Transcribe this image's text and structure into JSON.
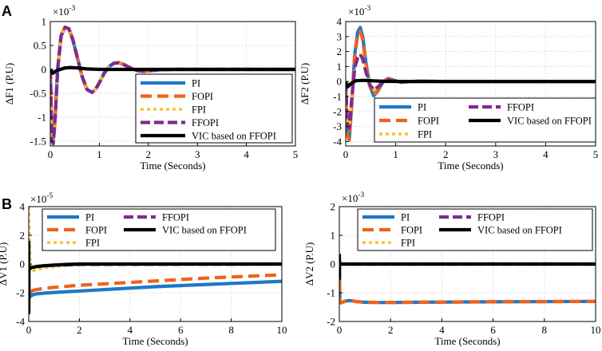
{
  "panel_labels": [
    "A",
    "B"
  ],
  "legend_labels": {
    "pi": "PI",
    "fopi": "FOPI",
    "fpi": "FPI",
    "ffopi": "FFOPI",
    "vic": "VIC based on FFOPI"
  },
  "colors": {
    "pi": "#1f77c8",
    "fopi": "#f0621e",
    "fpi": "#f6c334",
    "ffopi": "#7b2c93",
    "vic": "#000000"
  },
  "chart_data": [
    {
      "id": "f1",
      "type": "line",
      "ylabel": "ΔF1 (P.U)",
      "xlabel": "Time (Seconds)",
      "multiplier": "×10",
      "multiplier_exp": "-3",
      "xlim": [
        0,
        5
      ],
      "ylim": [
        -1.6,
        1.0
      ],
      "xticks": [
        0,
        1,
        2,
        3,
        4,
        5
      ],
      "xtick_labels": [
        "0",
        "1",
        "2",
        "3",
        "4",
        "5"
      ],
      "yticks": [
        -1.5,
        -1,
        -0.5,
        0,
        0.5,
        1
      ],
      "ytick_labels": [
        "-1.5",
        "-1",
        "-0.5",
        "0",
        "0.5",
        "1"
      ],
      "legend_position": "bottom-right",
      "series": [
        {
          "name": "PI",
          "x": [
            0,
            0.03,
            0.06,
            0.1,
            0.15,
            0.22,
            0.3,
            0.38,
            0.46,
            0.55,
            0.65,
            0.75,
            0.85,
            0.92,
            1.0,
            1.1,
            1.2,
            1.3,
            1.4,
            1.5,
            1.6,
            1.7,
            1.8,
            1.9,
            2.0,
            2.2,
            2.5,
            3.0,
            5.0
          ],
          "y": [
            0,
            -1.45,
            -1.55,
            -1.0,
            0.0,
            0.7,
            0.88,
            0.85,
            0.62,
            0.25,
            -0.15,
            -0.42,
            -0.48,
            -0.42,
            -0.28,
            -0.08,
            0.06,
            0.13,
            0.14,
            0.1,
            0.05,
            0.0,
            -0.03,
            -0.04,
            -0.03,
            -0.01,
            0.0,
            0.0,
            0.0
          ]
        },
        {
          "name": "FOPI",
          "x": [
            0,
            0.03,
            0.06,
            0.1,
            0.15,
            0.22,
            0.3,
            0.38,
            0.46,
            0.55,
            0.65,
            0.75,
            0.85,
            0.92,
            1.0,
            1.1,
            1.2,
            1.3,
            1.4,
            1.5,
            1.6,
            1.7,
            1.8,
            1.9,
            2.0,
            2.2,
            2.5,
            3.0,
            5.0
          ],
          "y": [
            0,
            -1.45,
            -1.55,
            -1.0,
            0.0,
            0.7,
            0.88,
            0.85,
            0.62,
            0.25,
            -0.15,
            -0.42,
            -0.48,
            -0.42,
            -0.28,
            -0.08,
            0.06,
            0.13,
            0.14,
            0.1,
            0.05,
            0.0,
            -0.03,
            -0.04,
            -0.03,
            -0.01,
            0.0,
            0.0,
            0.0
          ]
        },
        {
          "name": "FPI",
          "x": [
            0,
            0.03,
            0.06,
            0.1,
            0.15,
            0.22,
            0.3,
            0.38,
            0.46,
            0.55,
            0.65,
            0.75,
            0.85,
            0.92,
            1.0,
            1.1,
            1.2,
            1.3,
            1.4,
            1.5,
            1.6,
            1.7,
            1.8,
            1.9,
            2.0,
            2.2,
            2.5,
            3.0,
            5.0
          ],
          "y": [
            0,
            -1.45,
            -1.55,
            -1.0,
            0.0,
            0.7,
            0.88,
            0.85,
            0.62,
            0.25,
            -0.15,
            -0.42,
            -0.48,
            -0.42,
            -0.28,
            -0.08,
            0.06,
            0.13,
            0.14,
            0.1,
            0.05,
            0.0,
            -0.03,
            -0.04,
            -0.03,
            -0.01,
            0.0,
            0.0,
            0.0
          ]
        },
        {
          "name": "FFOPI",
          "x": [
            0,
            0.03,
            0.06,
            0.1,
            0.15,
            0.22,
            0.3,
            0.38,
            0.46,
            0.55,
            0.65,
            0.75,
            0.85,
            0.92,
            1.0,
            1.1,
            1.2,
            1.3,
            1.4,
            1.5,
            1.6,
            1.7,
            1.8,
            1.9,
            2.0,
            2.2,
            2.5,
            3.0,
            5.0
          ],
          "y": [
            0,
            -1.45,
            -1.55,
            -1.0,
            0.0,
            0.7,
            0.88,
            0.85,
            0.62,
            0.25,
            -0.15,
            -0.42,
            -0.48,
            -0.42,
            -0.28,
            -0.08,
            0.06,
            0.13,
            0.14,
            0.1,
            0.05,
            0.0,
            -0.03,
            -0.04,
            -0.03,
            -0.01,
            0.0,
            0.0,
            0.0
          ]
        },
        {
          "name": "VIC based on FFOPI",
          "x": [
            0,
            0.05,
            0.12,
            0.2,
            0.3,
            0.4,
            0.55,
            0.75,
            1.0,
            1.5,
            2.0,
            5.0
          ],
          "y": [
            0,
            -0.08,
            -0.03,
            0.0,
            0.03,
            0.04,
            0.03,
            0.01,
            0.0,
            0.0,
            0.0,
            0.0
          ]
        }
      ]
    },
    {
      "id": "f2",
      "type": "line",
      "ylabel": "ΔF2 (P.U)",
      "xlabel": "Time (Seconds)",
      "multiplier": "×10",
      "multiplier_exp": "-3",
      "xlim": [
        0,
        5
      ],
      "ylim": [
        -4.3,
        4.0
      ],
      "xticks": [
        0,
        1,
        2,
        3,
        4,
        5
      ],
      "xtick_labels": [
        "0",
        "1",
        "2",
        "3",
        "4",
        "5"
      ],
      "yticks": [
        -4,
        -3,
        -2,
        -1,
        0,
        1,
        2,
        3,
        4
      ],
      "ytick_labels": [
        "-4",
        "-3",
        "-2",
        "-1",
        "0",
        "1",
        "2",
        "3",
        "4"
      ],
      "legend_position": "bottom-right",
      "series": [
        {
          "name": "PI",
          "x": [
            0,
            0.03,
            0.07,
            0.12,
            0.18,
            0.24,
            0.29,
            0.34,
            0.4,
            0.48,
            0.56,
            0.65,
            0.75,
            0.85,
            0.95,
            1.1,
            1.3,
            1.5,
            2.0,
            5.0
          ],
          "y": [
            0,
            -3.5,
            -3.9,
            -1.5,
            1.8,
            3.3,
            3.6,
            3.0,
            1.4,
            -0.3,
            -0.95,
            -0.6,
            0.0,
            0.2,
            0.1,
            -0.05,
            0.0,
            0.03,
            0.0,
            0.0
          ]
        },
        {
          "name": "FOPI",
          "x": [
            0,
            0.03,
            0.07,
            0.12,
            0.18,
            0.24,
            0.29,
            0.34,
            0.4,
            0.48,
            0.56,
            0.65,
            0.75,
            0.85,
            0.95,
            1.1,
            1.3,
            1.5,
            2.0,
            5.0
          ],
          "y": [
            0,
            -3.5,
            -3.9,
            -1.6,
            1.7,
            3.1,
            3.35,
            2.8,
            1.3,
            -0.3,
            -0.9,
            -0.55,
            0.0,
            0.18,
            0.08,
            -0.04,
            0.0,
            0.02,
            0.0,
            0.0
          ]
        },
        {
          "name": "FPI",
          "x": [
            0,
            0.03,
            0.07,
            0.12,
            0.18,
            0.24,
            0.29,
            0.34,
            0.4,
            0.48,
            0.56,
            0.65,
            0.75,
            0.85,
            0.95,
            1.1,
            1.3,
            1.5,
            2.0,
            5.0
          ],
          "y": [
            0,
            -2.8,
            -3.1,
            -1.2,
            0.9,
            1.6,
            1.8,
            1.5,
            0.7,
            -0.2,
            -0.55,
            -0.35,
            0.0,
            0.12,
            0.05,
            -0.02,
            0.0,
            0.01,
            0.0,
            0.0
          ]
        },
        {
          "name": "FFOPI",
          "x": [
            0,
            0.03,
            0.07,
            0.12,
            0.18,
            0.24,
            0.29,
            0.34,
            0.4,
            0.48,
            0.56,
            0.65,
            0.75,
            0.85,
            0.95,
            1.1,
            1.3,
            1.5,
            2.0,
            5.0
          ],
          "y": [
            0,
            -2.8,
            -3.1,
            -1.2,
            0.9,
            1.6,
            1.8,
            1.5,
            0.7,
            -0.2,
            -0.55,
            -0.35,
            0.0,
            0.12,
            0.05,
            -0.02,
            0.0,
            0.01,
            0.0,
            0.0
          ]
        },
        {
          "name": "VIC based on FFOPI",
          "x": [
            0,
            0.04,
            0.1,
            0.2,
            0.35,
            0.5,
            0.8,
            1.2,
            5.0
          ],
          "y": [
            0,
            -0.35,
            -0.15,
            0.05,
            0.08,
            0.05,
            0.01,
            0.0,
            0.0
          ]
        }
      ]
    },
    {
      "id": "v1",
      "type": "line",
      "ylabel": "ΔV1 (P.U)",
      "xlabel": "Time (Seconds)",
      "multiplier": "×10",
      "multiplier_exp": "-5",
      "xlim": [
        0,
        10
      ],
      "ylim": [
        -4,
        4
      ],
      "xticks": [
        0,
        2,
        4,
        6,
        8,
        10
      ],
      "xtick_labels": [
        "0",
        "2",
        "4",
        "6",
        "8",
        "10"
      ],
      "yticks": [
        -4,
        -2,
        0,
        2,
        4
      ],
      "ytick_labels": [
        "-4",
        "-2",
        "0",
        "2",
        "4"
      ],
      "legend_position": "top",
      "series": [
        {
          "name": "PI",
          "x": [
            0,
            0.02,
            0.05,
            0.15,
            0.3,
            0.6,
            1,
            2,
            3,
            4,
            5,
            6,
            7,
            8,
            9,
            10
          ],
          "y": [
            0,
            -2.35,
            -2.25,
            -2.15,
            -2.08,
            -2.03,
            -1.98,
            -1.88,
            -1.78,
            -1.68,
            -1.58,
            -1.5,
            -1.42,
            -1.35,
            -1.28,
            -1.2
          ]
        },
        {
          "name": "FOPI",
          "x": [
            0,
            0.02,
            0.05,
            0.15,
            0.3,
            0.6,
            1,
            2,
            3,
            4,
            5,
            6,
            7,
            8,
            9,
            10
          ],
          "y": [
            0,
            -2.1,
            -2.0,
            -1.85,
            -1.78,
            -1.7,
            -1.62,
            -1.48,
            -1.38,
            -1.28,
            -1.18,
            -1.08,
            -0.98,
            -0.9,
            -0.82,
            -0.75
          ]
        },
        {
          "name": "FPI",
          "x": [
            0,
            0.01,
            0.03,
            0.05,
            0.1,
            0.2,
            0.4,
            0.7,
            1.0,
            1.5,
            2.0,
            3.0,
            10
          ],
          "y": [
            4.0,
            3.0,
            1.5,
            0.4,
            -0.3,
            -0.45,
            -0.35,
            -0.25,
            -0.18,
            -0.1,
            -0.05,
            0.0,
            0.0
          ]
        },
        {
          "name": "FFOPI",
          "x": [
            0,
            0.02,
            0.05,
            0.1,
            0.3,
            0.6,
            1.0,
            2.0,
            10
          ],
          "y": [
            0,
            -0.4,
            -0.3,
            -0.25,
            -0.18,
            -0.12,
            -0.07,
            -0.02,
            0.0
          ]
        },
        {
          "name": "VIC based on FFOPI",
          "x": [
            0,
            0.002,
            0.004,
            0.02,
            0.05,
            0.1,
            0.3,
            0.6,
            1.0,
            1.5,
            2.0,
            10
          ],
          "y": [
            1.6,
            -3.4,
            -0.3,
            -0.35,
            -0.3,
            -0.25,
            -0.18,
            -0.12,
            -0.07,
            -0.03,
            0.0,
            0.0
          ]
        }
      ]
    },
    {
      "id": "v2",
      "type": "line",
      "ylabel": "ΔV2 (P.U)",
      "xlabel": "Time (Seconds)",
      "multiplier": "×10",
      "multiplier_exp": "-3",
      "xlim": [
        0,
        10
      ],
      "ylim": [
        -2,
        2
      ],
      "xticks": [
        0,
        2,
        4,
        6,
        8,
        10
      ],
      "xtick_labels": [
        "0",
        "2",
        "4",
        "6",
        "8",
        "10"
      ],
      "yticks": [
        -2,
        -1,
        0,
        1,
        2
      ],
      "ytick_labels": [
        "-2",
        "-1",
        "0",
        "1",
        "2"
      ],
      "legend_position": "top",
      "series": [
        {
          "name": "PI",
          "x": [
            0,
            0.02,
            0.06,
            0.15,
            0.25,
            0.4,
            0.7,
            1.0,
            1.5,
            2.0,
            3.0,
            5.0,
            7.0,
            10
          ],
          "y": [
            0,
            -1.3,
            -1.35,
            -1.32,
            -1.29,
            -1.27,
            -1.31,
            -1.33,
            -1.34,
            -1.34,
            -1.33,
            -1.32,
            -1.31,
            -1.3
          ]
        },
        {
          "name": "FOPI",
          "x": [
            0,
            0.02,
            0.06,
            0.15,
            0.25,
            0.4,
            0.7,
            1.0,
            1.5,
            2.0,
            3.0,
            5.0,
            7.0,
            10
          ],
          "y": [
            0,
            -1.3,
            -1.35,
            -1.32,
            -1.29,
            -1.27,
            -1.31,
            -1.33,
            -1.34,
            -1.34,
            -1.33,
            -1.32,
            -1.31,
            -1.3
          ]
        },
        {
          "name": "FPI",
          "x": [
            0,
            10
          ],
          "y": [
            0,
            0
          ]
        },
        {
          "name": "FFOPI",
          "x": [
            0,
            10
          ],
          "y": [
            0,
            0
          ]
        },
        {
          "name": "VIC based on FFOPI",
          "x": [
            0,
            0.002,
            0.004,
            0.01,
            0.05,
            10
          ],
          "y": [
            0.35,
            -0.5,
            0.15,
            0.0,
            0.0,
            0.0
          ]
        }
      ]
    }
  ]
}
